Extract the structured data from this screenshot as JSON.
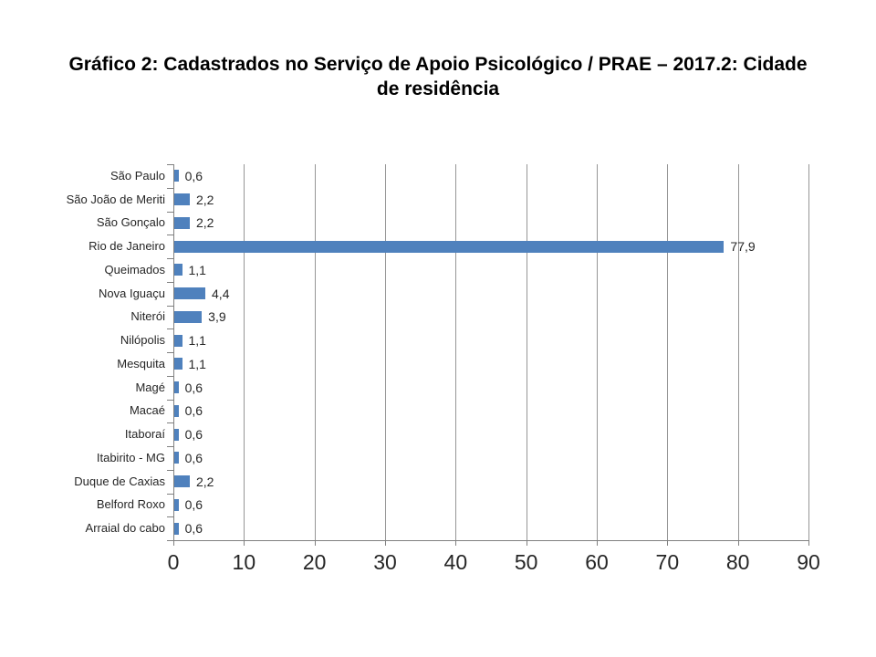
{
  "slide": {
    "background": "#ffffff"
  },
  "chart_data": {
    "type": "bar",
    "orientation": "horizontal",
    "title": "Gráfico 2: Cadastrados no Serviço de Apoio Psicológico / PRAE – 2017.2: Cidade de residência",
    "categories": [
      "São Paulo",
      "São João de Meriti",
      "São Gonçalo",
      "Rio de Janeiro",
      "Queimados",
      "Nova Iguaçu",
      "Niterói",
      "Nilópolis",
      "Mesquita",
      "Magé",
      "Macaé",
      "Itaboraí",
      "Itabirito - MG",
      "Duque de Caxias",
      "Belford Roxo",
      "Arraial do cabo"
    ],
    "values": [
      0.6,
      2.2,
      2.2,
      77.9,
      1.1,
      4.4,
      3.9,
      1.1,
      1.1,
      0.6,
      0.6,
      0.6,
      0.6,
      2.2,
      0.6,
      0.6
    ],
    "value_labels": [
      "0,6",
      "2,2",
      "2,2",
      "77,9",
      "1,1",
      "4,4",
      "3,9",
      "1,1",
      "1,1",
      "0,6",
      "0,6",
      "0,6",
      "0,6",
      "2,2",
      "0,6",
      "0,6"
    ],
    "x_ticks": [
      0,
      10,
      20,
      30,
      40,
      50,
      60,
      70,
      80,
      90
    ],
    "xlim": [
      0,
      90
    ],
    "grid": "vertical",
    "legend": "none",
    "colors": {
      "bar": "#4F81BD",
      "gridline": "#969696",
      "axis": "#808080",
      "text": "#262626",
      "title": "#000000"
    }
  }
}
